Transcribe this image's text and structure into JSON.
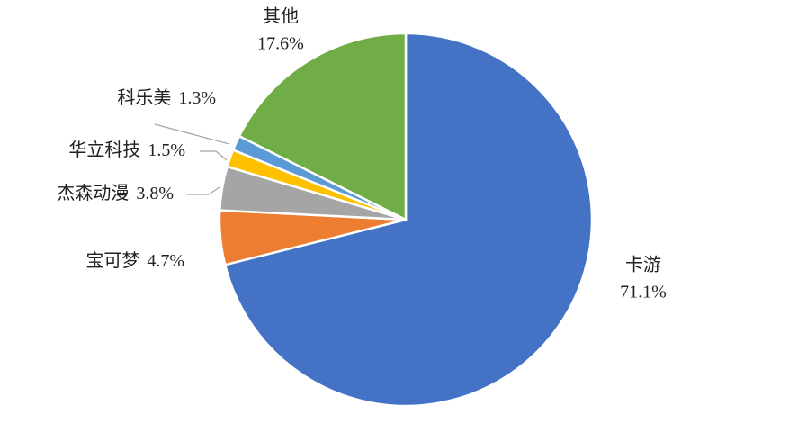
{
  "chart_data": {
    "type": "pie",
    "categories": [
      "卡游",
      "宝可梦",
      "杰森动漫",
      "华立科技",
      "科乐美",
      "其他"
    ],
    "values": [
      71.1,
      4.7,
      3.8,
      1.5,
      1.3,
      17.6
    ],
    "value_labels": [
      "71.1%",
      "4.7%",
      "3.8%",
      "1.5%",
      "1.3%",
      "17.6%"
    ],
    "colors": [
      "#4472c4",
      "#ed7d31",
      "#a5a5a5",
      "#ffc000",
      "#5b9bd5",
      "#70ad47"
    ]
  }
}
